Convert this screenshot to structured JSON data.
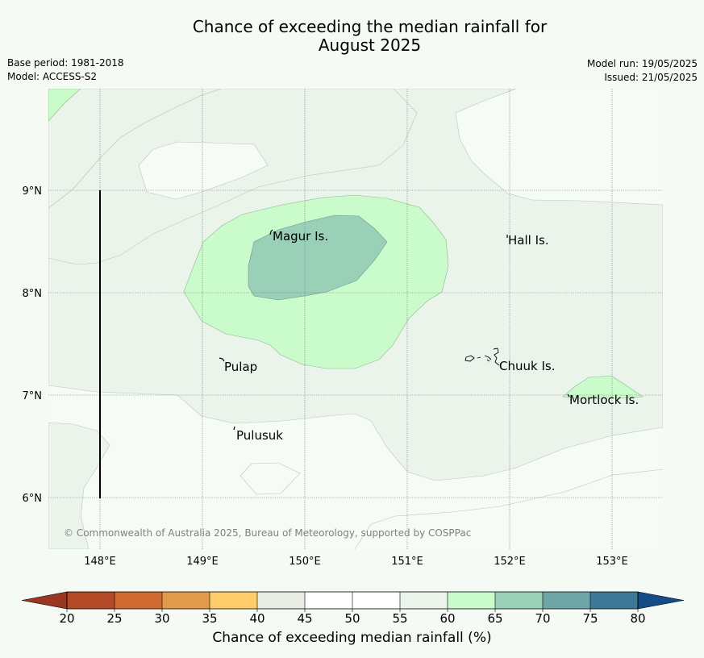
{
  "title": {
    "line1": "Chance of exceeding the median rainfall for",
    "line2": "August 2025"
  },
  "meta_left": {
    "base_period": "Base period: 1981-2018",
    "model": "Model: ACCESS-S2"
  },
  "meta_right": {
    "model_run": "Model run: 19/05/2025",
    "issued": "Issued: 21/05/2025"
  },
  "map": {
    "lat_labels": [
      "9°N",
      "8°N",
      "7°N",
      "6°N"
    ],
    "lon_labels": [
      "148°E",
      "149°E",
      "150°E",
      "151°E",
      "152°E",
      "153°E"
    ],
    "places": [
      "Magur Is.",
      "Hall Is.",
      "Pulap",
      "Chuuk Is.",
      "Mortlock Is.",
      "Pulusuk"
    ],
    "copyright": "© Commonwealth of Australia 2025, Bureau of Meteorology, supported by COSPPac"
  },
  "colorbar": {
    "ticks": [
      "20",
      "25",
      "30",
      "35",
      "40",
      "45",
      "50",
      "55",
      "60",
      "65",
      "70",
      "75",
      "80"
    ],
    "colors": [
      "#b24a27",
      "#d0692f",
      "#e29a4c",
      "#fecd69",
      "#e9ebe5",
      "#ffffff",
      "#ffffff",
      "#ebf4eb",
      "#c9fbcb",
      "#9acfb8",
      "#6ea6a8",
      "#3e7797"
    ],
    "under_color": "#9b3620",
    "over_color": "#154c86",
    "label": "Chance of exceeding median rainfall (%)"
  }
}
